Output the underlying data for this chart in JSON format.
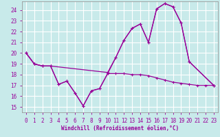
{
  "bg_color": "#c8eaea",
  "line_color": "#990099",
  "grid_color": "#ffffff",
  "xlim": [
    -0.5,
    23.5
  ],
  "ylim": [
    14.5,
    24.8
  ],
  "yticks": [
    15,
    16,
    17,
    18,
    19,
    20,
    21,
    22,
    23,
    24
  ],
  "xticks": [
    0,
    1,
    2,
    3,
    4,
    5,
    6,
    7,
    8,
    9,
    10,
    11,
    12,
    13,
    14,
    15,
    16,
    17,
    18,
    19,
    20,
    21,
    22,
    23
  ],
  "xlabel": "Windchill (Refroidissement éolien,°C)",
  "line1_x": [
    0,
    1,
    2,
    3,
    10,
    11,
    12,
    13,
    14,
    15,
    16,
    17,
    18,
    19,
    20,
    23
  ],
  "line1_y": [
    20.0,
    19.0,
    18.8,
    18.8,
    18.2,
    19.6,
    21.2,
    22.3,
    22.7,
    21.0,
    24.1,
    24.6,
    24.3,
    22.8,
    19.2,
    17.0
  ],
  "line2_x": [
    0,
    1,
    2,
    3,
    4,
    5,
    6,
    7,
    8,
    9,
    10,
    11,
    12,
    13,
    14,
    15,
    16,
    17,
    18,
    19,
    20,
    23
  ],
  "line2_y": [
    20.0,
    19.0,
    18.8,
    18.8,
    17.1,
    17.4,
    16.3,
    15.1,
    16.5,
    16.7,
    18.1,
    19.6,
    21.2,
    22.3,
    22.7,
    21.0,
    24.1,
    24.6,
    24.3,
    22.8,
    19.2,
    17.0
  ],
  "line3_x": [
    0,
    1,
    2,
    3,
    4,
    5,
    6,
    7,
    8,
    9,
    10,
    11,
    12,
    13,
    14,
    15,
    16,
    17,
    18,
    19,
    20,
    21,
    22,
    23
  ],
  "line3_y": [
    20.0,
    19.0,
    18.8,
    18.8,
    17.1,
    17.4,
    16.3,
    15.1,
    16.5,
    16.7,
    18.1,
    18.1,
    18.1,
    18.0,
    18.0,
    17.9,
    17.7,
    17.5,
    17.3,
    17.2,
    17.1,
    17.0,
    17.0,
    17.0
  ],
  "tick_color": "#990099",
  "xlabel_color": "#990099",
  "font_family": "monospace",
  "tick_fontsize": 5.5,
  "xlabel_fontsize": 5.5,
  "lw": 0.9,
  "ms": 3.0
}
